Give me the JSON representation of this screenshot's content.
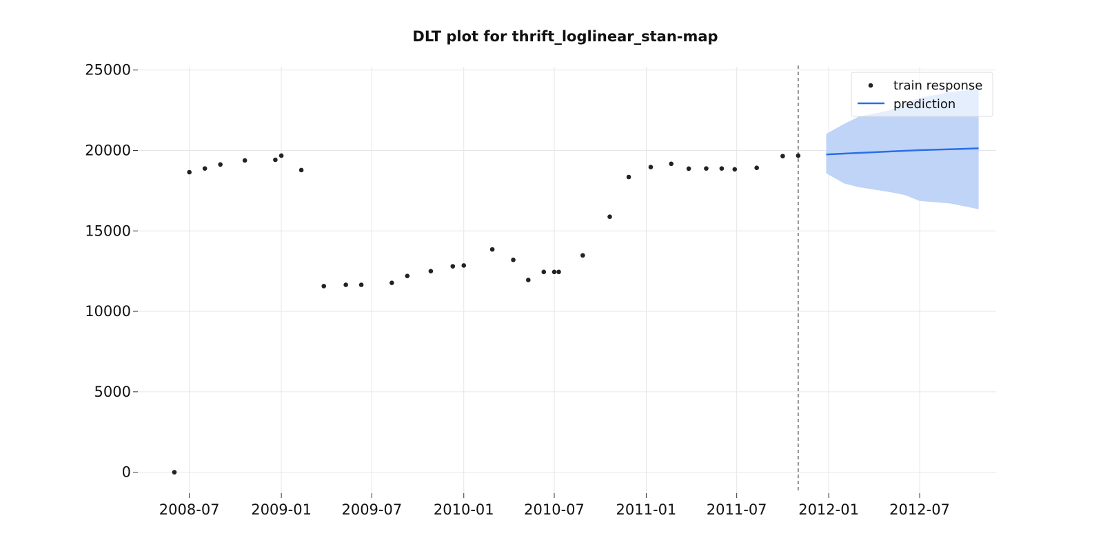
{
  "chart_data": {
    "type": "scatter",
    "title": "DLT plot for thrift_loglinear_stan-map",
    "xlabel": "",
    "ylabel": "",
    "x_ticks": [
      "2008-07",
      "2009-01",
      "2009-07",
      "2010-01",
      "2010-07",
      "2011-01",
      "2011-07",
      "2012-01",
      "2012-07"
    ],
    "x_range": [
      "2008-03-20",
      "2012-12-01"
    ],
    "y_ticks": [
      0,
      5000,
      10000,
      15000,
      20000,
      25000
    ],
    "ylim": [
      -1300,
      25200
    ],
    "grid": true,
    "legend_position": "top-right",
    "cutoff_date": "2011-11-01",
    "colors": {
      "train": "#222222",
      "prediction": "#2a6ee8",
      "interval": "#bcd2f7",
      "cutoff": "#666666"
    },
    "series": [
      {
        "name": "train response",
        "kind": "scatter",
        "points": [
          {
            "x": "2008-06-01",
            "y": 0
          },
          {
            "x": "2008-07-01",
            "y": 18650
          },
          {
            "x": "2008-08-01",
            "y": 18880
          },
          {
            "x": "2008-09-01",
            "y": 19130
          },
          {
            "x": "2008-10-20",
            "y": 19380
          },
          {
            "x": "2008-12-20",
            "y": 19420
          },
          {
            "x": "2009-01-01",
            "y": 19680
          },
          {
            "x": "2009-02-10",
            "y": 18780
          },
          {
            "x": "2009-03-27",
            "y": 11570
          },
          {
            "x": "2009-05-10",
            "y": 11650
          },
          {
            "x": "2009-06-10",
            "y": 11650
          },
          {
            "x": "2009-08-10",
            "y": 11770
          },
          {
            "x": "2009-09-10",
            "y": 12200
          },
          {
            "x": "2009-10-27",
            "y": 12500
          },
          {
            "x": "2009-12-10",
            "y": 12800
          },
          {
            "x": "2010-01-01",
            "y": 12850
          },
          {
            "x": "2010-02-27",
            "y": 13850
          },
          {
            "x": "2010-04-10",
            "y": 13200
          },
          {
            "x": "2010-05-10",
            "y": 11950
          },
          {
            "x": "2010-06-10",
            "y": 12450
          },
          {
            "x": "2010-07-01",
            "y": 12450
          },
          {
            "x": "2010-07-10",
            "y": 12450
          },
          {
            "x": "2010-08-27",
            "y": 13480
          },
          {
            "x": "2010-10-20",
            "y": 15880
          },
          {
            "x": "2010-11-27",
            "y": 18350
          },
          {
            "x": "2011-01-10",
            "y": 18970
          },
          {
            "x": "2011-02-20",
            "y": 19170
          },
          {
            "x": "2011-03-27",
            "y": 18870
          },
          {
            "x": "2011-05-01",
            "y": 18880
          },
          {
            "x": "2011-06-01",
            "y": 18880
          },
          {
            "x": "2011-06-27",
            "y": 18830
          },
          {
            "x": "2011-08-10",
            "y": 18920
          },
          {
            "x": "2011-10-01",
            "y": 19650
          },
          {
            "x": "2011-11-01",
            "y": 19680
          }
        ]
      },
      {
        "name": "prediction",
        "kind": "line",
        "points": [
          {
            "x": "2011-12-27",
            "y": 19750
          },
          {
            "x": "2012-03-01",
            "y": 19850
          },
          {
            "x": "2012-07-01",
            "y": 20020
          },
          {
            "x": "2012-10-27",
            "y": 20130
          }
        ]
      }
    ],
    "interval": {
      "points": [
        {
          "x": "2011-12-27",
          "lower": 18580,
          "upper": 21030
        },
        {
          "x": "2012-02-01",
          "lower": 17950,
          "upper": 21650
        },
        {
          "x": "2012-03-01",
          "lower": 17720,
          "upper": 22100
        },
        {
          "x": "2012-05-01",
          "lower": 17420,
          "upper": 22480
        },
        {
          "x": "2012-06-01",
          "lower": 17230,
          "upper": 22930
        },
        {
          "x": "2012-07-01",
          "lower": 16860,
          "upper": 23260
        },
        {
          "x": "2012-09-01",
          "lower": 16700,
          "upper": 23640
        },
        {
          "x": "2012-10-27",
          "lower": 16350,
          "upper": 23800
        }
      ]
    }
  }
}
